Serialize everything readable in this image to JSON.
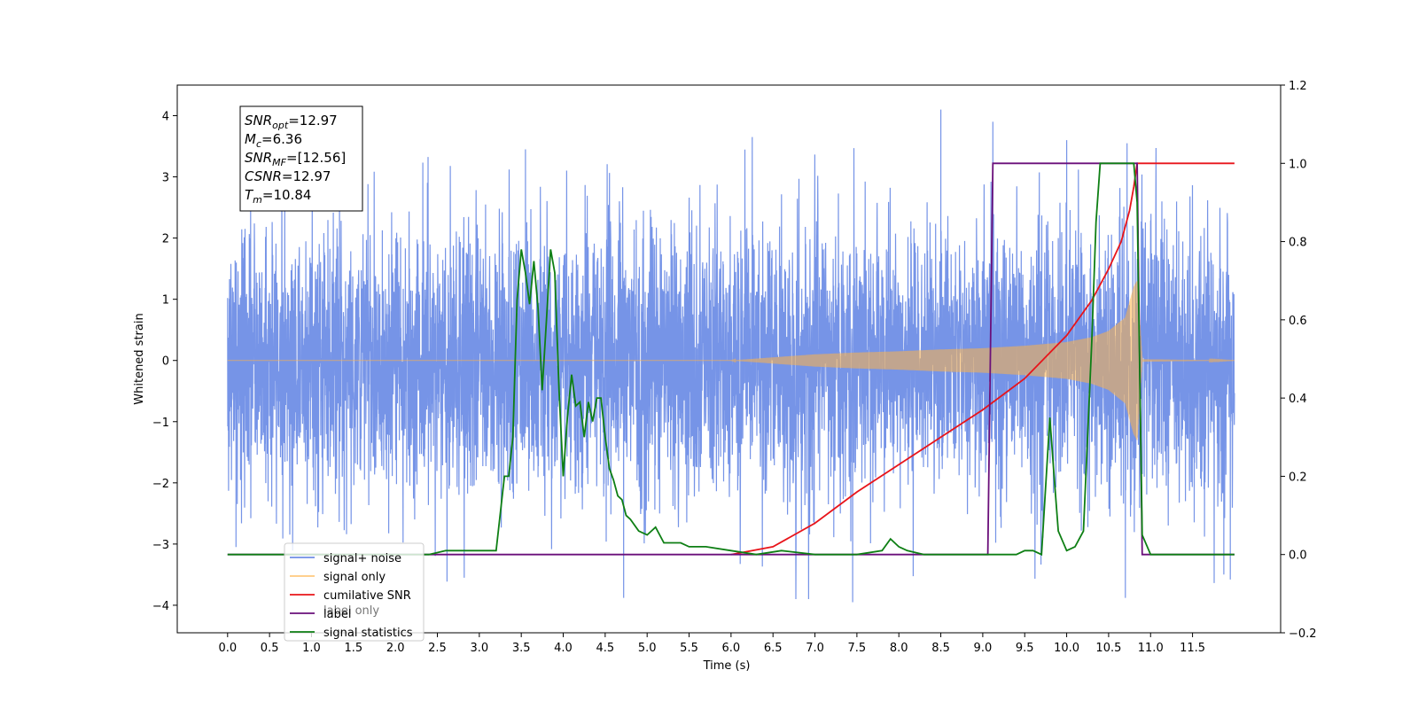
{
  "chart_data": {
    "type": "line",
    "title": "",
    "xlabel": "Time (s)",
    "ylabel": "Whitened strain",
    "y2label": "",
    "xlim": [
      -0.6,
      12.55
    ],
    "ylim": [
      -4.45,
      4.5
    ],
    "y2lim": [
      -0.2,
      1.2
    ],
    "xticks": [
      "0.0",
      "0.5",
      "1.0",
      "1.5",
      "2.0",
      "2.5",
      "3.0",
      "3.5",
      "4.0",
      "4.5",
      "5.0",
      "5.5",
      "6.0",
      "6.5",
      "7.0",
      "7.5",
      "8.0",
      "8.5",
      "9.0",
      "9.5",
      "10.0",
      "10.5",
      "11.0",
      "11.5"
    ],
    "yticks": [
      "−4",
      "−3",
      "−2",
      "−1",
      "0",
      "1",
      "2",
      "3",
      "4"
    ],
    "y2ticks": [
      "−0.2",
      "0.0",
      "0.2",
      "0.4",
      "0.6",
      "0.8",
      "1.0",
      "1.2"
    ],
    "grid": false,
    "legend_position": "lower-left",
    "series": [
      {
        "name": "signal+ noise",
        "axis": "left",
        "color": "#6f8ee6",
        "x_range": [
          0.0,
          12.0
        ],
        "noise_std": 1.1,
        "description_values": "dense noisy strain around 0, peaks up to 4.1 at 8.5 s, troughs down to -3.95 at 7.5 s"
      },
      {
        "name": "signal only",
        "axis": "left",
        "color": "#ffb347",
        "x": [
          0.0,
          6.0,
          6.5,
          7.0,
          7.5,
          8.0,
          8.5,
          9.0,
          9.5,
          10.0,
          10.3,
          10.5,
          10.7,
          10.8,
          10.84,
          10.9,
          12.0
        ],
        "envelope": [
          0.0,
          0.0,
          0.05,
          0.1,
          0.13,
          0.15,
          0.18,
          0.2,
          0.24,
          0.3,
          0.38,
          0.48,
          0.7,
          1.2,
          1.3,
          0.02,
          0.0
        ]
      },
      {
        "name": "cumilative SNR",
        "axis": "right",
        "color": "#e8141a",
        "x": [
          6.0,
          6.5,
          7.0,
          7.5,
          8.0,
          8.5,
          9.0,
          9.5,
          10.0,
          10.3,
          10.5,
          10.65,
          10.75,
          10.8,
          10.84,
          12.0
        ],
        "y": [
          0.0,
          0.02,
          0.08,
          0.16,
          0.23,
          0.3,
          0.37,
          0.45,
          0.56,
          0.65,
          0.73,
          0.8,
          0.88,
          0.94,
          1.0,
          1.0
        ]
      },
      {
        "name": "label",
        "axis": "right",
        "color": "#6a0f7a",
        "x": [
          0.0,
          9.06,
          9.12,
          10.84,
          10.9,
          12.0
        ],
        "y": [
          0.0,
          0.0,
          1.0,
          1.0,
          0.0,
          0.0
        ]
      },
      {
        "name": "signal statistics",
        "axis": "right",
        "color": "#0e7f14",
        "x": [
          0.0,
          2.4,
          2.6,
          3.0,
          3.2,
          3.3,
          3.35,
          3.4,
          3.45,
          3.5,
          3.55,
          3.6,
          3.65,
          3.7,
          3.75,
          3.8,
          3.85,
          3.9,
          3.95,
          4.0,
          4.05,
          4.1,
          4.15,
          4.2,
          4.25,
          4.3,
          4.35,
          4.4,
          4.45,
          4.5,
          4.55,
          4.6,
          4.65,
          4.7,
          4.75,
          4.8,
          4.9,
          5.0,
          5.1,
          5.2,
          5.3,
          5.4,
          5.5,
          5.7,
          6.0,
          6.3,
          6.6,
          7.0,
          7.5,
          7.8,
          7.9,
          8.0,
          8.1,
          8.3,
          8.6,
          9.0,
          9.4,
          9.5,
          9.6,
          9.7,
          9.8,
          9.85,
          9.9,
          10.0,
          10.1,
          10.2,
          10.3,
          10.35,
          10.4,
          10.45,
          10.5,
          10.6,
          10.8,
          10.84,
          10.9,
          11.0,
          12.0
        ],
        "y": [
          0.0,
          0.0,
          0.01,
          0.01,
          0.01,
          0.2,
          0.2,
          0.3,
          0.65,
          0.78,
          0.72,
          0.64,
          0.75,
          0.63,
          0.42,
          0.6,
          0.78,
          0.72,
          0.42,
          0.2,
          0.35,
          0.46,
          0.38,
          0.39,
          0.3,
          0.39,
          0.34,
          0.4,
          0.4,
          0.3,
          0.22,
          0.19,
          0.15,
          0.14,
          0.1,
          0.09,
          0.06,
          0.05,
          0.07,
          0.03,
          0.03,
          0.03,
          0.02,
          0.02,
          0.01,
          0.0,
          0.01,
          0.0,
          0.0,
          0.01,
          0.04,
          0.02,
          0.01,
          0.0,
          0.0,
          0.0,
          0.0,
          0.01,
          0.01,
          0.0,
          0.35,
          0.2,
          0.06,
          0.01,
          0.02,
          0.06,
          0.55,
          0.85,
          1.0,
          1.0,
          1.0,
          1.0,
          1.0,
          0.9,
          0.05,
          0.0,
          0.0
        ]
      }
    ],
    "annotation": [
      {
        "sym": "SNR",
        "sub": "opt",
        "value": "=12.97"
      },
      {
        "sym": "M",
        "sub": "c",
        "value": "=6.36"
      },
      {
        "sym": "SNR",
        "sub": "MF",
        "value": "=[12.56]"
      },
      {
        "sym": "CSNR",
        "sub": "",
        "value": "=12.97"
      },
      {
        "sym": "T",
        "sub": "m",
        "value": "=10.84"
      }
    ],
    "legend_extra": "label only"
  }
}
